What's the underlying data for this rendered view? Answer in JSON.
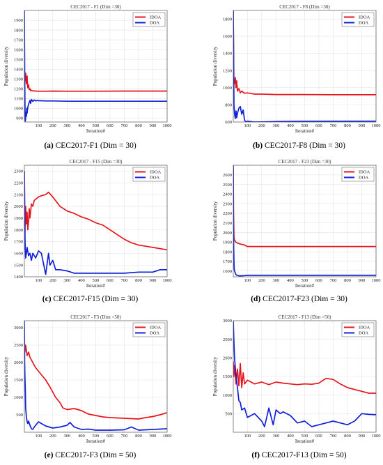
{
  "chart_data": [
    {
      "type": "line",
      "title": "CEC2017 - F1 (Dim =30)",
      "caption_letter": "(a)",
      "caption_text": "CEC2017-F1 (Dim = 30)",
      "xlabel": "Iteration#",
      "ylabel": "Population diversity",
      "xlim": [
        1,
        1000
      ],
      "ylim": [
        860,
        2000
      ],
      "xticks": [
        100,
        200,
        300,
        400,
        500,
        600,
        700,
        800,
        900,
        1000
      ],
      "yticks": [
        900,
        1000,
        1100,
        1200,
        1300,
        1400,
        1500,
        1600,
        1700,
        1800,
        1900
      ],
      "grid": true,
      "legend_position": "top-right",
      "series": [
        {
          "name": "IDOA",
          "color": "#e8141c",
          "x": [
            1,
            5,
            10,
            15,
            20,
            25,
            30,
            35,
            40,
            45,
            50,
            60,
            80,
            100,
            150,
            200,
            300,
            500,
            700,
            1000
          ],
          "y": [
            1330,
            1280,
            1360,
            1250,
            1330,
            1210,
            1240,
            1190,
            1200,
            1180,
            1185,
            1178,
            1176,
            1175,
            1175,
            1176,
            1175,
            1175,
            1176,
            1176
          ]
        },
        {
          "name": "DOA",
          "color": "#1020d8",
          "x": [
            1,
            2,
            4,
            6,
            8,
            10,
            12,
            15,
            18,
            20,
            25,
            30,
            35,
            40,
            45,
            50,
            60,
            70,
            80,
            90,
            100,
            150,
            200,
            300,
            500,
            1000
          ],
          "y": [
            2000,
            1700,
            1250,
            950,
            870,
            900,
            960,
            920,
            1000,
            950,
            1010,
            1040,
            1060,
            1080,
            1050,
            1090,
            1070,
            1085,
            1075,
            1080,
            1078,
            1075,
            1075,
            1072,
            1072,
            1072
          ]
        }
      ]
    },
    {
      "type": "line",
      "title": "CEC2017 - F8 (Dim =30)",
      "caption_letter": "(b)",
      "caption_text": "CEC2017-F8 (Dim = 30)",
      "xlabel": "Iteration#",
      "ylabel": "Population diversity",
      "xlim": [
        1,
        1000
      ],
      "ylim": [
        600,
        1900
      ],
      "xticks": [
        100,
        200,
        300,
        400,
        500,
        600,
        700,
        800,
        900,
        1000
      ],
      "yticks": [
        600,
        800,
        1000,
        1200,
        1400,
        1600,
        1800
      ],
      "grid": true,
      "legend_position": "top-right",
      "series": [
        {
          "name": "IDOA",
          "color": "#e8141c",
          "x": [
            1,
            5,
            10,
            15,
            20,
            25,
            30,
            40,
            50,
            60,
            80,
            100,
            150,
            200,
            300,
            500,
            700,
            1000
          ],
          "y": [
            1900,
            1100,
            1050,
            1120,
            1000,
            1080,
            960,
            990,
            940,
            960,
            935,
            940,
            925,
            925,
            920,
            920,
            918,
            918
          ]
        },
        {
          "name": "DOA",
          "color": "#1020d8",
          "x": [
            1,
            3,
            6,
            10,
            15,
            20,
            25,
            30,
            40,
            50,
            60,
            70,
            80,
            90,
            100,
            120,
            150,
            200,
            300,
            500,
            1000
          ],
          "y": [
            1900,
            1400,
            800,
            700,
            640,
            730,
            650,
            700,
            760,
            780,
            690,
            740,
            620,
            600,
            610,
            605,
            600,
            602,
            605,
            608,
            610
          ]
        }
      ]
    },
    {
      "type": "line",
      "title": "CEC2017 - F15 (Dim =30)",
      "caption_letter": "(c)",
      "caption_text": "CEC2017-F15 (Dim = 30)",
      "xlabel": "Iteration#",
      "ylabel": "Population diversity",
      "xlim": [
        1,
        1000
      ],
      "ylim": [
        1400,
        2350
      ],
      "xticks": [
        100,
        200,
        300,
        400,
        500,
        600,
        700,
        800,
        900,
        1000
      ],
      "yticks": [
        1400,
        1500,
        1600,
        1700,
        1800,
        1900,
        2000,
        2100,
        2200,
        2300
      ],
      "grid": true,
      "legend_position": "top-right",
      "series": [
        {
          "name": "IDOA",
          "color": "#e8141c",
          "x": [
            1,
            5,
            10,
            15,
            20,
            25,
            30,
            35,
            40,
            50,
            60,
            70,
            80,
            100,
            120,
            150,
            170,
            200,
            250,
            300,
            350,
            400,
            450,
            500,
            550,
            600,
            650,
            700,
            750,
            800,
            850,
            900,
            950,
            1000
          ],
          "y": [
            2300,
            1780,
            2000,
            1850,
            1950,
            1800,
            1870,
            1980,
            1900,
            2020,
            2000,
            2050,
            2060,
            2080,
            2090,
            2100,
            2120,
            2080,
            2000,
            1960,
            1940,
            1910,
            1890,
            1860,
            1840,
            1800,
            1760,
            1720,
            1690,
            1670,
            1660,
            1650,
            1640,
            1630
          ]
        },
        {
          "name": "DOA",
          "color": "#1020d8",
          "x": [
            1,
            3,
            6,
            10,
            15,
            20,
            30,
            40,
            50,
            60,
            70,
            80,
            100,
            120,
            150,
            170,
            180,
            200,
            220,
            250,
            300,
            350,
            400,
            500,
            600,
            700,
            800,
            900,
            950,
            1000
          ],
          "y": [
            2300,
            2000,
            1700,
            1560,
            1600,
            1650,
            1580,
            1600,
            1540,
            1600,
            1580,
            1560,
            1620,
            1600,
            1420,
            1600,
            1500,
            1540,
            1460,
            1460,
            1450,
            1430,
            1430,
            1430,
            1430,
            1430,
            1440,
            1440,
            1460,
            1460
          ]
        }
      ]
    },
    {
      "type": "line",
      "title": "CEC2017 - F23 (Dim =30)",
      "caption_letter": "(d)",
      "caption_text": "CEC2017-F23 (Dim = 30)",
      "xlabel": "Iteration#",
      "ylabel": "Population diversity",
      "xlim": [
        1,
        1000
      ],
      "ylim": [
        1540,
        2700
      ],
      "xticks": [
        100,
        200,
        300,
        400,
        500,
        600,
        700,
        800,
        900,
        1000
      ],
      "yticks": [
        1600,
        1700,
        1800,
        1900,
        2000,
        2100,
        2200,
        2300,
        2400,
        2500,
        2600
      ],
      "grid": true,
      "legend_position": "top-right",
      "series": [
        {
          "name": "IDOA",
          "color": "#e8141c",
          "x": [
            1,
            3,
            6,
            10,
            20,
            30,
            50,
            80,
            100,
            150,
            200,
            300,
            500,
            700,
            1000
          ],
          "y": [
            2650,
            2200,
            1950,
            1920,
            1900,
            1890,
            1880,
            1870,
            1855,
            1855,
            1855,
            1855,
            1855,
            1855,
            1855
          ]
        },
        {
          "name": "DOA",
          "color": "#1020d8",
          "x": [
            1,
            2,
            4,
            6,
            8,
            10,
            15,
            20,
            30,
            40,
            60,
            80,
            100,
            150,
            200,
            300,
            500,
            1000
          ],
          "y": [
            2700,
            2200,
            1850,
            1700,
            1620,
            1600,
            1580,
            1560,
            1555,
            1550,
            1550,
            1552,
            1555,
            1555,
            1555,
            1555,
            1555,
            1555
          ]
        }
      ]
    },
    {
      "type": "line",
      "title": "CEC2017 - F3 (Dim =50)",
      "caption_letter": "(e)",
      "caption_text": "CEC2017-F3 (Dim = 50)",
      "xlabel": "Iteration#",
      "ylabel": "Population diversity",
      "xlim": [
        1,
        1000
      ],
      "ylim": [
        0,
        3200
      ],
      "xticks": [
        100,
        200,
        300,
        400,
        500,
        600,
        700,
        800,
        900,
        1000
      ],
      "yticks": [
        500,
        1000,
        1500,
        2000,
        2500,
        3000
      ],
      "grid": true,
      "legend_position": "top-right",
      "series": [
        {
          "name": "IDOA",
          "color": "#e8141c",
          "x": [
            1,
            5,
            10,
            20,
            30,
            40,
            60,
            80,
            100,
            120,
            150,
            180,
            200,
            220,
            250,
            270,
            300,
            350,
            400,
            450,
            500,
            550,
            600,
            650,
            700,
            750,
            800,
            850,
            900,
            950,
            1000
          ],
          "y": [
            2600,
            2300,
            2500,
            2200,
            2300,
            2150,
            2000,
            1850,
            1750,
            1650,
            1500,
            1300,
            1150,
            1000,
            850,
            700,
            650,
            680,
            620,
            520,
            480,
            440,
            420,
            410,
            400,
            390,
            380,
            420,
            450,
            500,
            560
          ]
        },
        {
          "name": "DOA",
          "color": "#1020d8",
          "x": [
            1,
            3,
            5,
            8,
            10,
            15,
            20,
            25,
            30,
            40,
            50,
            60,
            70,
            80,
            100,
            120,
            150,
            200,
            250,
            300,
            320,
            350,
            400,
            450,
            500,
            600,
            700,
            750,
            800,
            900,
            1000
          ],
          "y": [
            3200,
            2000,
            1600,
            1200,
            700,
            450,
            300,
            250,
            320,
            200,
            100,
            80,
            150,
            200,
            300,
            250,
            180,
            120,
            150,
            200,
            280,
            150,
            80,
            90,
            60,
            60,
            70,
            150,
            60,
            80,
            100
          ]
        }
      ]
    },
    {
      "type": "line",
      "title": "CEC2017 - F13 (Dim =50)",
      "caption_letter": "(f)",
      "caption_text": "CEC2017-F13 (Dim = 50)",
      "xlabel": "Iteration#",
      "ylabel": "Population diversity",
      "xlim": [
        1,
        1000
      ],
      "ylim": [
        0,
        3000
      ],
      "xticks": [
        100,
        200,
        300,
        400,
        500,
        600,
        700,
        800,
        900,
        1000
      ],
      "yticks": [
        500,
        1000,
        1500,
        2000,
        2500,
        3000
      ],
      "grid": true,
      "legend_position": "top-right",
      "series": [
        {
          "name": "IDOA",
          "color": "#e8141c",
          "x": [
            1,
            5,
            10,
            20,
            30,
            40,
            50,
            60,
            70,
            80,
            100,
            150,
            200,
            250,
            300,
            350,
            400,
            450,
            500,
            550,
            600,
            650,
            700,
            750,
            800,
            850,
            900,
            950,
            1000
          ],
          "y": [
            1900,
            1500,
            1800,
            1300,
            1700,
            1250,
            1850,
            1200,
            1600,
            1300,
            1400,
            1300,
            1350,
            1280,
            1350,
            1320,
            1300,
            1280,
            1300,
            1290,
            1320,
            1450,
            1420,
            1300,
            1200,
            1150,
            1100,
            1050,
            1050
          ]
        },
        {
          "name": "DOA",
          "color": "#1020d8",
          "x": [
            1,
            5,
            10,
            20,
            30,
            40,
            50,
            60,
            80,
            100,
            150,
            200,
            220,
            250,
            280,
            300,
            330,
            350,
            400,
            450,
            500,
            550,
            600,
            650,
            700,
            750,
            800,
            850,
            900,
            950,
            1000
          ],
          "y": [
            3000,
            2500,
            2000,
            1500,
            1200,
            850,
            800,
            600,
            650,
            400,
            500,
            300,
            150,
            650,
            200,
            600,
            500,
            550,
            450,
            250,
            300,
            150,
            200,
            250,
            300,
            250,
            200,
            300,
            500,
            480,
            470
          ]
        }
      ]
    }
  ]
}
